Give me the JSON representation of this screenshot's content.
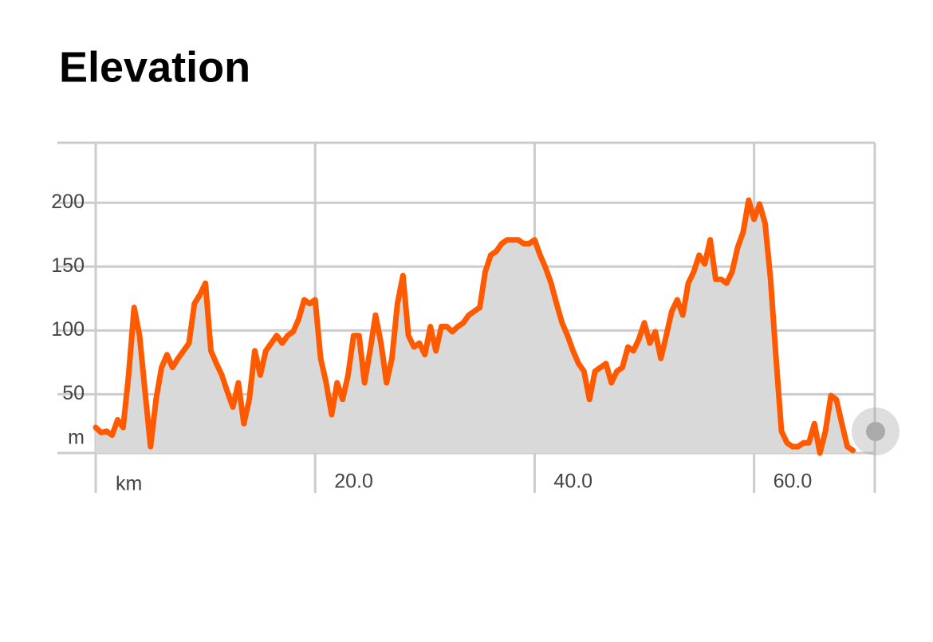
{
  "chart_data": {
    "type": "area",
    "title": "Elevation",
    "xlabel": "km",
    "ylabel": "m",
    "color": "#ff5a00",
    "fill": "#d9d9d9",
    "grid": true,
    "xlim": [
      0,
      71
    ],
    "ylim": [
      4,
      247
    ],
    "xticks": [
      {
        "value": 20,
        "label": "20.0"
      },
      {
        "value": 40,
        "label": "40.0"
      },
      {
        "value": 60,
        "label": "60.0"
      }
    ],
    "yticks": [
      50,
      100,
      150,
      200
    ],
    "x": [
      0,
      0.5,
      1,
      1.5,
      2,
      2.5,
      3,
      3.5,
      4,
      4.5,
      5,
      5.5,
      6,
      6.5,
      7,
      7.5,
      8,
      8.5,
      9,
      9.5,
      10,
      10.5,
      11,
      11.5,
      12,
      12.5,
      13,
      13.5,
      14,
      14.5,
      15,
      15.5,
      16,
      16.5,
      17,
      17.5,
      18,
      18.5,
      19,
      19.5,
      20,
      20.5,
      21,
      21.5,
      22,
      22.5,
      23,
      23.5,
      24,
      24.5,
      25,
      25.5,
      26,
      26.5,
      27,
      27.5,
      28,
      28.5,
      29,
      29.5,
      30,
      30.5,
      31,
      31.5,
      32,
      32.5,
      33,
      33.5,
      34,
      34.5,
      35,
      35.5,
      36,
      36.5,
      37,
      37.5,
      38,
      38.5,
      39,
      39.5,
      40,
      40.5,
      41,
      41.5,
      42,
      42.5,
      43,
      43.5,
      44,
      44.5,
      45,
      45.5,
      46,
      46.5,
      47,
      47.5,
      48,
      48.5,
      49,
      49.5,
      50,
      50.5,
      51,
      51.5,
      52,
      52.5,
      53,
      53.5,
      54,
      54.5,
      55,
      55.5,
      56,
      56.5,
      57,
      57.5,
      58,
      58.5,
      59,
      59.5,
      60,
      60.5,
      61,
      61.5,
      62,
      62.5,
      63,
      63.5,
      64,
      64.5,
      65,
      65.5,
      66,
      66.5,
      67,
      67.5,
      68,
      68.5,
      69
    ],
    "values": [
      24,
      20,
      21,
      18,
      30,
      24,
      65,
      118,
      96,
      52,
      9,
      46,
      71,
      81,
      71,
      78,
      84,
      90,
      121,
      128,
      137,
      84,
      74,
      65,
      52,
      40,
      59,
      27,
      46,
      84,
      65,
      84,
      90,
      96,
      90,
      96,
      99,
      109,
      124,
      121,
      124,
      78,
      59,
      34,
      59,
      46,
      65,
      96,
      96,
      59,
      84,
      112,
      90,
      59,
      78,
      121,
      143,
      96,
      87,
      90,
      81,
      103,
      84,
      103,
      103,
      99,
      103,
      106,
      112,
      115,
      118,
      146,
      159,
      162,
      168,
      171,
      171,
      171,
      168,
      168,
      171,
      159,
      149,
      137,
      121,
      106,
      96,
      84,
      74,
      68,
      46,
      68,
      71,
      74,
      59,
      68,
      71,
      87,
      84,
      93,
      106,
      90,
      99,
      78,
      96,
      115,
      124,
      112,
      137,
      146,
      159,
      152,
      171,
      140,
      140,
      137,
      146,
      165,
      177,
      202,
      187,
      199,
      184,
      140,
      78,
      21,
      12,
      9,
      9,
      12,
      12,
      27,
      4,
      21,
      49,
      46,
      27,
      9,
      6
    ]
  }
}
